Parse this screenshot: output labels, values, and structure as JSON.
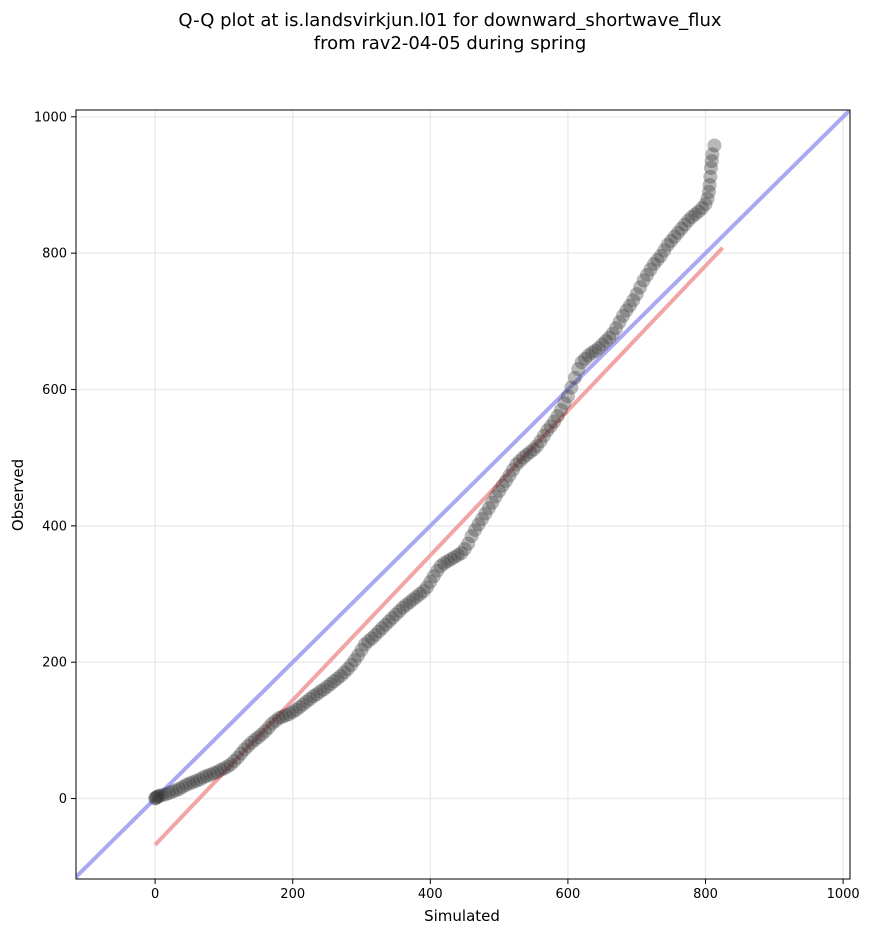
{
  "chart_data": {
    "type": "scatter",
    "title": "Q-Q plot at is.landsvirkjun.l01 for downward_shortwave_flux",
    "subtitle": "from rav2-04-05 during spring",
    "xlabel": "Simulated",
    "ylabel": "Observed",
    "xlim": [
      -115,
      1010
    ],
    "ylim": [
      -118,
      1010
    ],
    "x_ticks": [
      0,
      200,
      400,
      600,
      800,
      1000
    ],
    "y_ticks": [
      0,
      200,
      400,
      600,
      800,
      1000
    ],
    "x_tick_labels": [
      "0",
      "200",
      "400",
      "600",
      "800",
      "1000"
    ],
    "y_tick_labels": [
      "0",
      "200",
      "400",
      "600",
      "800",
      "1000"
    ],
    "grid": true,
    "colors": {
      "points": "#333333",
      "identity_line": "#a9a9f2",
      "fit_line": "#f2a5a5"
    },
    "reference_lines": [
      {
        "kind": "identity",
        "x": [
          -115,
          1010
        ],
        "y": [
          -115,
          1010
        ]
      },
      {
        "kind": "fit",
        "x": [
          0,
          825
        ],
        "y": [
          -68,
          808
        ]
      }
    ],
    "points": [
      [
        0,
        0
      ],
      [
        1,
        1
      ],
      [
        2,
        2
      ],
      [
        4,
        3
      ],
      [
        6,
        4
      ],
      [
        10,
        5
      ],
      [
        15,
        6
      ],
      [
        20,
        8
      ],
      [
        25,
        10
      ],
      [
        30,
        12
      ],
      [
        35,
        14
      ],
      [
        40,
        17
      ],
      [
        45,
        20
      ],
      [
        50,
        22
      ],
      [
        55,
        24
      ],
      [
        60,
        26
      ],
      [
        65,
        28
      ],
      [
        70,
        31
      ],
      [
        75,
        33
      ],
      [
        80,
        35
      ],
      [
        85,
        37
      ],
      [
        90,
        39
      ],
      [
        95,
        42
      ],
      [
        100,
        44
      ],
      [
        105,
        47
      ],
      [
        110,
        50
      ],
      [
        115,
        55
      ],
      [
        120,
        60
      ],
      [
        125,
        66
      ],
      [
        130,
        72
      ],
      [
        135,
        77
      ],
      [
        140,
        82
      ],
      [
        145,
        86
      ],
      [
        150,
        90
      ],
      [
        155,
        94
      ],
      [
        160,
        99
      ],
      [
        165,
        104
      ],
      [
        170,
        110
      ],
      [
        175,
        114
      ],
      [
        180,
        118
      ],
      [
        185,
        120
      ],
      [
        190,
        122
      ],
      [
        195,
        124
      ],
      [
        200,
        127
      ],
      [
        205,
        130
      ],
      [
        210,
        134
      ],
      [
        215,
        138
      ],
      [
        220,
        142
      ],
      [
        225,
        146
      ],
      [
        230,
        150
      ],
      [
        235,
        153
      ],
      [
        240,
        157
      ],
      [
        245,
        160
      ],
      [
        250,
        164
      ],
      [
        255,
        168
      ],
      [
        260,
        172
      ],
      [
        265,
        176
      ],
      [
        270,
        180
      ],
      [
        275,
        185
      ],
      [
        280,
        190
      ],
      [
        285,
        196
      ],
      [
        290,
        203
      ],
      [
        295,
        210
      ],
      [
        300,
        218
      ],
      [
        305,
        226
      ],
      [
        310,
        231
      ],
      [
        315,
        235
      ],
      [
        320,
        240
      ],
      [
        325,
        245
      ],
      [
        330,
        250
      ],
      [
        335,
        255
      ],
      [
        340,
        260
      ],
      [
        345,
        265
      ],
      [
        350,
        270
      ],
      [
        355,
        275
      ],
      [
        360,
        280
      ],
      [
        365,
        284
      ],
      [
        370,
        288
      ],
      [
        375,
        292
      ],
      [
        380,
        296
      ],
      [
        385,
        300
      ],
      [
        390,
        304
      ],
      [
        395,
        310
      ],
      [
        400,
        318
      ],
      [
        405,
        326
      ],
      [
        410,
        334
      ],
      [
        415,
        341
      ],
      [
        420,
        345
      ],
      [
        425,
        348
      ],
      [
        430,
        351
      ],
      [
        435,
        354
      ],
      [
        440,
        357
      ],
      [
        445,
        360
      ],
      [
        450,
        366
      ],
      [
        455,
        374
      ],
      [
        460,
        385
      ],
      [
        465,
        394
      ],
      [
        470,
        402
      ],
      [
        475,
        410
      ],
      [
        480,
        418
      ],
      [
        485,
        426
      ],
      [
        490,
        434
      ],
      [
        495,
        443
      ],
      [
        500,
        451
      ],
      [
        505,
        459
      ],
      [
        510,
        466
      ],
      [
        515,
        474
      ],
      [
        520,
        482
      ],
      [
        525,
        490
      ],
      [
        530,
        495
      ],
      [
        535,
        500
      ],
      [
        540,
        504
      ],
      [
        545,
        508
      ],
      [
        550,
        512
      ],
      [
        555,
        517
      ],
      [
        560,
        524
      ],
      [
        565,
        532
      ],
      [
        570,
        540
      ],
      [
        575,
        546
      ],
      [
        580,
        553
      ],
      [
        585,
        561
      ],
      [
        590,
        570
      ],
      [
        595,
        580
      ],
      [
        600,
        590
      ],
      [
        605,
        603
      ],
      [
        610,
        617
      ],
      [
        615,
        630
      ],
      [
        620,
        640
      ],
      [
        625,
        645
      ],
      [
        630,
        650
      ],
      [
        635,
        654
      ],
      [
        640,
        657
      ],
      [
        645,
        661
      ],
      [
        650,
        666
      ],
      [
        655,
        671
      ],
      [
        660,
        676
      ],
      [
        665,
        682
      ],
      [
        670,
        690
      ],
      [
        675,
        699
      ],
      [
        680,
        708
      ],
      [
        685,
        716
      ],
      [
        690,
        723
      ],
      [
        695,
        731
      ],
      [
        700,
        740
      ],
      [
        705,
        750
      ],
      [
        710,
        760
      ],
      [
        715,
        768
      ],
      [
        720,
        776
      ],
      [
        725,
        784
      ],
      [
        730,
        790
      ],
      [
        735,
        796
      ],
      [
        740,
        804
      ],
      [
        745,
        812
      ],
      [
        750,
        818
      ],
      [
        755,
        824
      ],
      [
        760,
        830
      ],
      [
        765,
        836
      ],
      [
        770,
        842
      ],
      [
        775,
        848
      ],
      [
        780,
        853
      ],
      [
        785,
        857
      ],
      [
        790,
        861
      ],
      [
        795,
        866
      ],
      [
        800,
        872
      ],
      [
        803,
        880
      ],
      [
        805,
        890
      ],
      [
        806,
        900
      ],
      [
        807,
        912
      ],
      [
        808,
        925
      ],
      [
        809,
        935
      ],
      [
        810,
        945
      ],
      [
        813,
        958
      ]
    ]
  }
}
